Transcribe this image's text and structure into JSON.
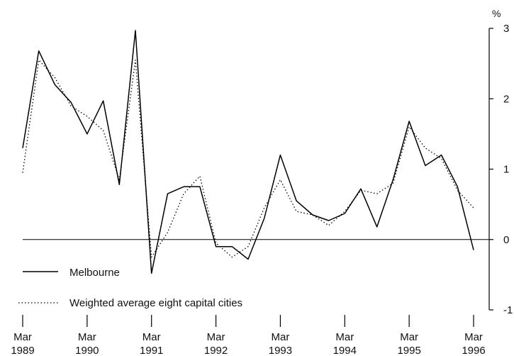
{
  "chart_data": {
    "type": "line",
    "title": "",
    "xlabel": "",
    "ylabel": "%",
    "ylim": [
      -1,
      3
    ],
    "yticks": [
      "3",
      "2",
      "1",
      "0",
      "-1"
    ],
    "xticks": [
      {
        "month": "Mar",
        "year": "1989"
      },
      {
        "month": "Mar",
        "year": "1990"
      },
      {
        "month": "Mar",
        "year": "1991"
      },
      {
        "month": "Mar",
        "year": "1992"
      },
      {
        "month": "Mar",
        "year": "1993"
      },
      {
        "month": "Mar",
        "year": "1994"
      },
      {
        "month": "Mar",
        "year": "1995"
      },
      {
        "month": "Mar",
        "year": "1996"
      }
    ],
    "x": [
      "Mar 1989",
      "Jun 1989",
      "Sep 1989",
      "Dec 1989",
      "Mar 1990",
      "Jun 1990",
      "Sep 1990",
      "Dec 1990",
      "Mar 1991",
      "Jun 1991",
      "Sep 1991",
      "Dec 1991",
      "Mar 1992",
      "Jun 1992",
      "Sep 1992",
      "Dec 1992",
      "Mar 1993",
      "Jun 1993",
      "Sep 1993",
      "Dec 1993",
      "Mar 1994",
      "Jun 1994",
      "Sep 1994",
      "Dec 1994",
      "Mar 1995",
      "Jun 1995",
      "Sep 1995",
      "Dec 1995",
      "Mar 1996"
    ],
    "series": [
      {
        "name": "Melbourne",
        "style": "solid",
        "color": "#000000",
        "values": [
          1.3,
          2.68,
          2.2,
          1.95,
          1.5,
          1.97,
          0.78,
          2.97,
          -0.48,
          0.65,
          0.75,
          0.75,
          -0.1,
          -0.1,
          -0.28,
          0.3,
          1.2,
          0.55,
          0.35,
          0.27,
          0.37,
          0.72,
          0.18,
          0.85,
          1.68,
          1.05,
          1.2,
          0.75,
          -0.15
        ]
      },
      {
        "name": "Weighted average eight capital cities",
        "style": "dotted",
        "color": "#000000",
        "values": [
          0.95,
          2.55,
          2.3,
          1.9,
          1.75,
          1.55,
          0.85,
          2.55,
          -0.25,
          0.1,
          0.65,
          0.9,
          -0.05,
          -0.25,
          -0.1,
          0.45,
          0.85,
          0.4,
          0.35,
          0.2,
          0.4,
          0.7,
          0.65,
          0.8,
          1.6,
          1.3,
          1.15,
          0.7,
          0.45
        ]
      }
    ],
    "zero_line": true,
    "grid": false,
    "legend_position": "bottom-left"
  }
}
